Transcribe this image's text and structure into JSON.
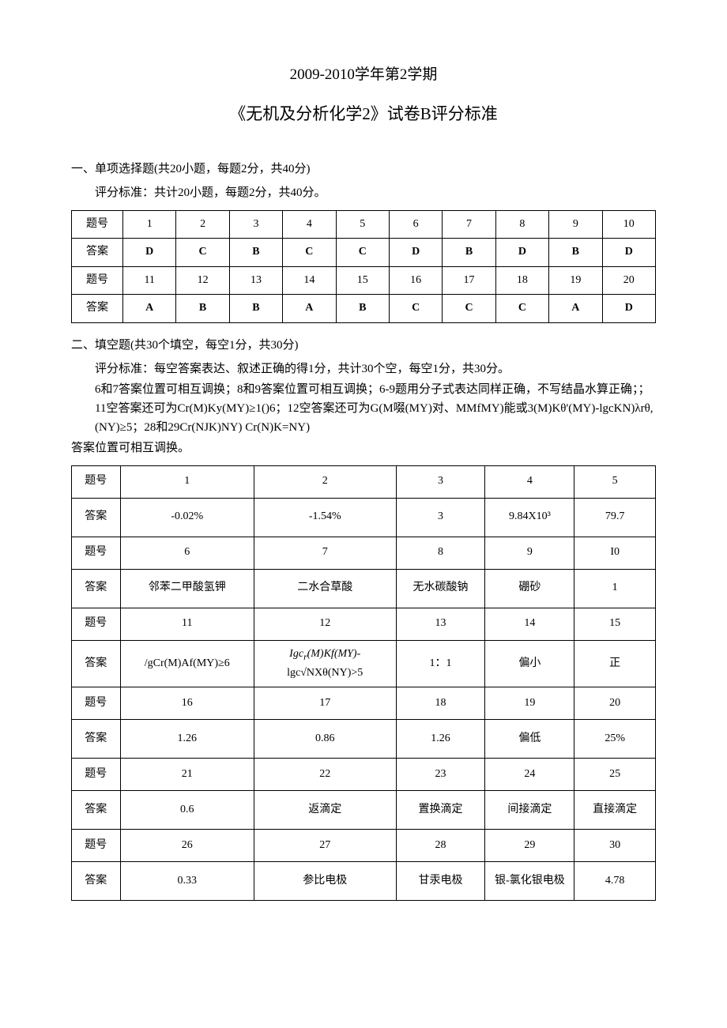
{
  "header": {
    "line1": "2009-2010学年第2学期",
    "line2": "《无机及分析化学2》试卷B评分标准"
  },
  "section1": {
    "heading": "一、单项选择题(共20小题，每题2分，共40分)",
    "criteria": "评分标准：共计20小题，每题2分，共40分。",
    "row_label_q": "题号",
    "row_label_a": "答案",
    "q_nums_1": [
      "1",
      "2",
      "3",
      "4",
      "5",
      "6",
      "7",
      "8",
      "9",
      "10"
    ],
    "answers_1": [
      "D",
      "C",
      "B",
      "C",
      "C",
      "D",
      "B",
      "D",
      "B",
      "D"
    ],
    "q_nums_2": [
      "11",
      "12",
      "13",
      "14",
      "15",
      "16",
      "17",
      "18",
      "19",
      "20"
    ],
    "answers_2": [
      "A",
      "B",
      "B",
      "A",
      "B",
      "C",
      "C",
      "C",
      "A",
      "D"
    ]
  },
  "section2": {
    "heading": "二、填空题(共30个填空，每空1分，共30分)",
    "criteria": "评分标准：每空答案表达、叙述正确的得1分，共计30个空，每空1分，共30分。",
    "note1": "6和7答案位置可相互调换；8和9答案位置可相互调换；6-9题用分子式表达同样正确，不写结晶水算正确；；11空答案还可为Cr(M)Ky(MY)≥1()6；12空答案还可为G(M啜(MY)对、MMfMY)能或3(M)Kθ'(MY)-lgcKN)λrθ,(NY)≥5；28和29Cr(NJK)NY) Cr(N)K=NY)",
    "note2": "答案位置可相互调换。",
    "row_label_q": "题号",
    "row_label_a": "答案",
    "rows": [
      {
        "nums": [
          "1",
          "2",
          "3",
          "4",
          "5"
        ],
        "ans": [
          "-0.02%",
          "-1.54%",
          "3",
          "9.84X10³",
          "79.7"
        ]
      },
      {
        "nums": [
          "6",
          "7",
          "8",
          "9",
          "I0"
        ],
        "ans": [
          "邻苯二甲酸氢钾",
          "二水合草酸",
          "无水碳酸钠",
          "硼砂",
          "1"
        ]
      },
      {
        "nums": [
          "11",
          "12",
          "13",
          "14",
          "15"
        ],
        "ans": [
          "/gCr(M)Af(MY)≥6",
          "Igcr(M)Kf(MY)-lgc√NXθ(NY)>5",
          "1：1",
          "偏小",
          "正"
        ]
      },
      {
        "nums": [
          "16",
          "17",
          "18",
          "19",
          "20"
        ],
        "ans": [
          "1.26",
          "0.86",
          "1.26",
          "偏低",
          "25%"
        ]
      },
      {
        "nums": [
          "21",
          "22",
          "23",
          "24",
          "25"
        ],
        "ans": [
          "0.6",
          "返滴定",
          "置换滴定",
          "间接滴定",
          "直接滴定"
        ]
      },
      {
        "nums": [
          "26",
          "27",
          "28",
          "29",
          "30"
        ],
        "ans": [
          "0.33",
          "参比电极",
          "甘汞电极",
          "银-氯化银电极",
          "4.78"
        ]
      }
    ],
    "col_widths": [
      "60px",
      "165px",
      "175px",
      "110px",
      "110px",
      "100px"
    ]
  }
}
